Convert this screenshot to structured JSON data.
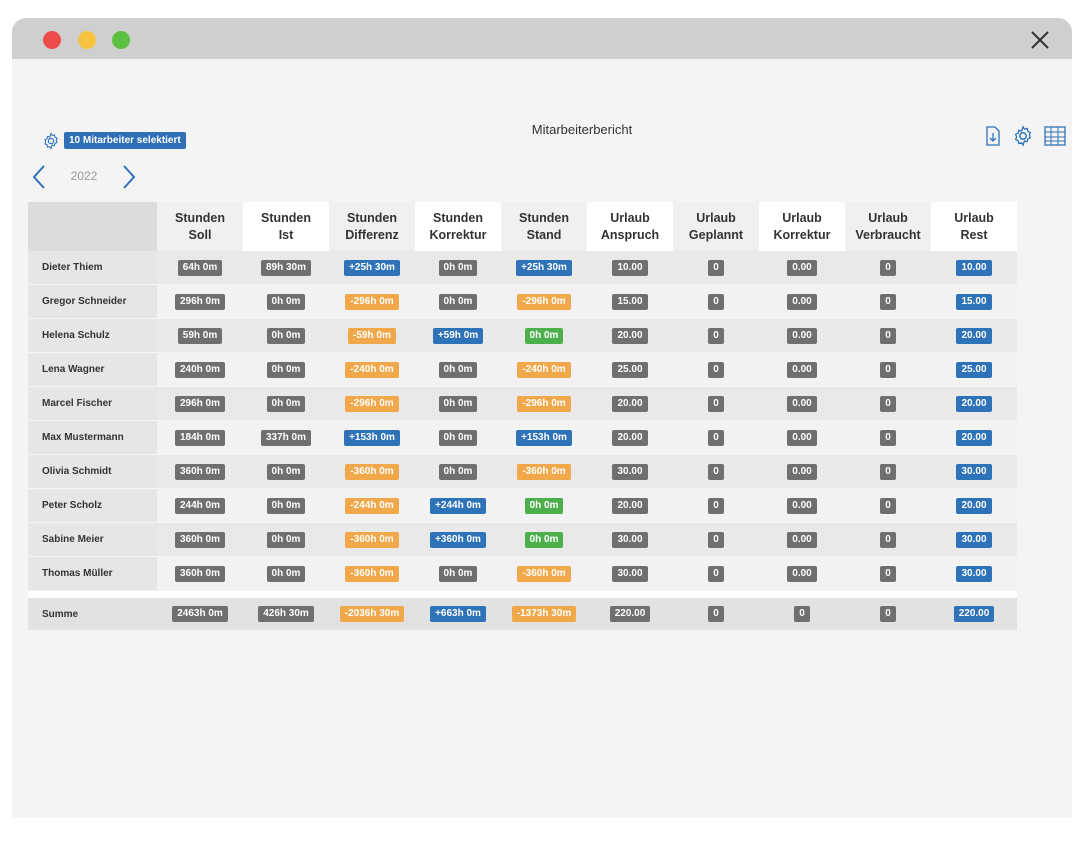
{
  "window": {
    "title": "Mitarbeiterbericht"
  },
  "toolbar": {
    "selected_label": "10 Mitarbeiter selektiert",
    "year": "2022"
  },
  "icons": {
    "settings_left": "gear-icon",
    "export": "document-download-icon",
    "settings_right": "gear-icon",
    "table": "table-icon",
    "prev": "chevron-left-icon",
    "next": "chevron-right-icon"
  },
  "colors": {
    "gray": "#6f6f6f",
    "blue": "#2e72b8",
    "orange": "#f0a84a",
    "green": "#4caf4c"
  },
  "columns": [
    {
      "line1": "Stunden",
      "line2": "Soll"
    },
    {
      "line1": "Stunden",
      "line2": "Ist"
    },
    {
      "line1": "Stunden",
      "line2": "Differenz"
    },
    {
      "line1": "Stunden",
      "line2": "Korrektur"
    },
    {
      "line1": "Stunden",
      "line2": "Stand"
    },
    {
      "line1": "Urlaub",
      "line2": "Anspruch"
    },
    {
      "line1": "Urlaub",
      "line2": "Geplannt"
    },
    {
      "line1": "Urlaub",
      "line2": "Korrektur"
    },
    {
      "line1": "Urlaub",
      "line2": "Verbraucht"
    },
    {
      "line1": "Urlaub",
      "line2": "Rest"
    }
  ],
  "rows": [
    {
      "name": "Dieter Thiem",
      "cells": [
        [
          "64h 0m",
          "gray"
        ],
        [
          "89h 30m",
          "gray"
        ],
        [
          "+25h 30m",
          "blue"
        ],
        [
          "0h 0m",
          "gray"
        ],
        [
          "+25h 30m",
          "blue"
        ],
        [
          "10.00",
          "gray"
        ],
        [
          "0",
          "gray"
        ],
        [
          "0.00",
          "gray"
        ],
        [
          "0",
          "gray"
        ],
        [
          "10.00",
          "blue"
        ]
      ]
    },
    {
      "name": "Gregor Schneider",
      "cells": [
        [
          "296h 0m",
          "gray"
        ],
        [
          "0h 0m",
          "gray"
        ],
        [
          "-296h 0m",
          "orange"
        ],
        [
          "0h 0m",
          "gray"
        ],
        [
          "-296h 0m",
          "orange"
        ],
        [
          "15.00",
          "gray"
        ],
        [
          "0",
          "gray"
        ],
        [
          "0.00",
          "gray"
        ],
        [
          "0",
          "gray"
        ],
        [
          "15.00",
          "blue"
        ]
      ]
    },
    {
      "name": "Helena Schulz",
      "cells": [
        [
          "59h 0m",
          "gray"
        ],
        [
          "0h 0m",
          "gray"
        ],
        [
          "-59h 0m",
          "orange"
        ],
        [
          "+59h 0m",
          "blue"
        ],
        [
          "0h 0m",
          "green"
        ],
        [
          "20.00",
          "gray"
        ],
        [
          "0",
          "gray"
        ],
        [
          "0.00",
          "gray"
        ],
        [
          "0",
          "gray"
        ],
        [
          "20.00",
          "blue"
        ]
      ]
    },
    {
      "name": "Lena Wagner",
      "cells": [
        [
          "240h 0m",
          "gray"
        ],
        [
          "0h 0m",
          "gray"
        ],
        [
          "-240h 0m",
          "orange"
        ],
        [
          "0h 0m",
          "gray"
        ],
        [
          "-240h 0m",
          "orange"
        ],
        [
          "25.00",
          "gray"
        ],
        [
          "0",
          "gray"
        ],
        [
          "0.00",
          "gray"
        ],
        [
          "0",
          "gray"
        ],
        [
          "25.00",
          "blue"
        ]
      ]
    },
    {
      "name": "Marcel Fischer",
      "cells": [
        [
          "296h 0m",
          "gray"
        ],
        [
          "0h 0m",
          "gray"
        ],
        [
          "-296h 0m",
          "orange"
        ],
        [
          "0h 0m",
          "gray"
        ],
        [
          "-296h 0m",
          "orange"
        ],
        [
          "20.00",
          "gray"
        ],
        [
          "0",
          "gray"
        ],
        [
          "0.00",
          "gray"
        ],
        [
          "0",
          "gray"
        ],
        [
          "20.00",
          "blue"
        ]
      ]
    },
    {
      "name": "Max Mustermann",
      "cells": [
        [
          "184h 0m",
          "gray"
        ],
        [
          "337h 0m",
          "gray"
        ],
        [
          "+153h 0m",
          "blue"
        ],
        [
          "0h 0m",
          "gray"
        ],
        [
          "+153h 0m",
          "blue"
        ],
        [
          "20.00",
          "gray"
        ],
        [
          "0",
          "gray"
        ],
        [
          "0.00",
          "gray"
        ],
        [
          "0",
          "gray"
        ],
        [
          "20.00",
          "blue"
        ]
      ]
    },
    {
      "name": "Olivia Schmidt",
      "cells": [
        [
          "360h 0m",
          "gray"
        ],
        [
          "0h 0m",
          "gray"
        ],
        [
          "-360h 0m",
          "orange"
        ],
        [
          "0h 0m",
          "gray"
        ],
        [
          "-360h 0m",
          "orange"
        ],
        [
          "30.00",
          "gray"
        ],
        [
          "0",
          "gray"
        ],
        [
          "0.00",
          "gray"
        ],
        [
          "0",
          "gray"
        ],
        [
          "30.00",
          "blue"
        ]
      ]
    },
    {
      "name": "Peter Scholz",
      "cells": [
        [
          "244h 0m",
          "gray"
        ],
        [
          "0h 0m",
          "gray"
        ],
        [
          "-244h 0m",
          "orange"
        ],
        [
          "+244h 0m",
          "blue"
        ],
        [
          "0h 0m",
          "green"
        ],
        [
          "20.00",
          "gray"
        ],
        [
          "0",
          "gray"
        ],
        [
          "0.00",
          "gray"
        ],
        [
          "0",
          "gray"
        ],
        [
          "20.00",
          "blue"
        ]
      ]
    },
    {
      "name": "Sabine Meier",
      "cells": [
        [
          "360h 0m",
          "gray"
        ],
        [
          "0h 0m",
          "gray"
        ],
        [
          "-360h 0m",
          "orange"
        ],
        [
          "+360h 0m",
          "blue"
        ],
        [
          "0h 0m",
          "green"
        ],
        [
          "30.00",
          "gray"
        ],
        [
          "0",
          "gray"
        ],
        [
          "0.00",
          "gray"
        ],
        [
          "0",
          "gray"
        ],
        [
          "30.00",
          "blue"
        ]
      ]
    },
    {
      "name": "Thomas Müller",
      "cells": [
        [
          "360h 0m",
          "gray"
        ],
        [
          "0h 0m",
          "gray"
        ],
        [
          "-360h 0m",
          "orange"
        ],
        [
          "0h 0m",
          "gray"
        ],
        [
          "-360h 0m",
          "orange"
        ],
        [
          "30.00",
          "gray"
        ],
        [
          "0",
          "gray"
        ],
        [
          "0.00",
          "gray"
        ],
        [
          "0",
          "gray"
        ],
        [
          "30.00",
          "blue"
        ]
      ]
    }
  ],
  "summary": {
    "name": "Summe",
    "cells": [
      [
        "2463h 0m",
        "gray"
      ],
      [
        "426h 30m",
        "gray"
      ],
      [
        "-2036h 30m",
        "orange"
      ],
      [
        "+663h 0m",
        "blue"
      ],
      [
        "-1373h 30m",
        "orange"
      ],
      [
        "220.00",
        "gray"
      ],
      [
        "0",
        "gray"
      ],
      [
        "0",
        "gray"
      ],
      [
        "0",
        "gray"
      ],
      [
        "220.00",
        "blue"
      ]
    ]
  }
}
